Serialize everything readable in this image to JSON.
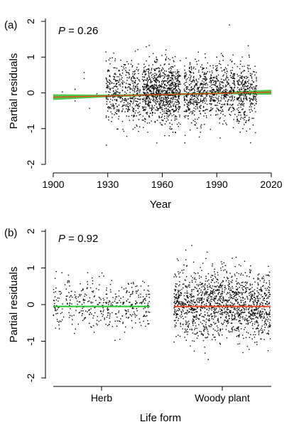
{
  "chart_data": [
    {
      "type": "scatter",
      "panel_label": "(a)",
      "p_value": {
        "symbol": "P",
        "text": " = 0.26"
      },
      "xlabel": "Year",
      "ylabel": "Partial residuals",
      "xlim": [
        1900,
        2020
      ],
      "ylim": [
        -2,
        2
      ],
      "x_ticks": [
        1900,
        1930,
        1960,
        1990,
        2020
      ],
      "x_tick_labels": [
        "1900",
        "1930",
        "1960",
        "1990",
        "2020"
      ],
      "y_ticks": [
        -2,
        -1,
        0,
        1,
        2
      ],
      "y_tick_labels": [
        "-2",
        "-1",
        "0",
        "1",
        "2"
      ],
      "fit_line": {
        "x": [
          1900,
          2020
        ],
        "y": [
          -0.12,
          0.02
        ],
        "color": "#e8461e"
      },
      "confidence_band": {
        "x": [
          1900,
          1930,
          1960,
          1990,
          2020
        ],
        "lower": [
          -0.2,
          -0.12,
          -0.08,
          -0.04,
          -0.05
        ],
        "upper": [
          -0.04,
          -0.05,
          -0.02,
          0.02,
          0.09
        ],
        "color": "#29c12a"
      },
      "points": [
        [
          1930,
          0.6
        ],
        [
          1932,
          -0.8
        ],
        [
          1934,
          0.9
        ],
        [
          1936,
          0.3
        ],
        [
          1938,
          -0.5
        ],
        [
          1940,
          0.7
        ],
        [
          1942,
          -0.3
        ],
        [
          1945,
          0.4
        ],
        [
          1948,
          -0.6
        ],
        [
          1950,
          0.8
        ],
        [
          1952,
          -1.1
        ],
        [
          1955,
          1.1
        ],
        [
          1957,
          -1.4
        ],
        [
          1958,
          0.2
        ],
        [
          1960,
          -0.9
        ],
        [
          1962,
          1.2
        ],
        [
          1964,
          -0.4
        ],
        [
          1966,
          0.5
        ],
        [
          1968,
          -0.2
        ],
        [
          1975,
          0.7
        ],
        [
          1978,
          -0.8
        ],
        [
          1980,
          0.9
        ],
        [
          1983,
          -0.5
        ],
        [
          1986,
          0.3
        ],
        [
          1990,
          1.0
        ],
        [
          1992,
          -0.7
        ],
        [
          1995,
          0.4
        ],
        [
          1997,
          1.9
        ],
        [
          2000,
          -0.6
        ],
        [
          2003,
          0.8
        ],
        [
          2005,
          -0.3
        ],
        [
          2008,
          1.0
        ],
        [
          2010,
          -0.9
        ],
        [
          2012,
          0.2
        ],
        [
          1912,
          0.1
        ],
        [
          1917,
          0.4
        ]
      ],
      "point_color": "#000000"
    },
    {
      "type": "scatter",
      "panel_label": "(b)",
      "p_value": {
        "symbol": "P",
        "text": " = 0.92"
      },
      "xlabel": "Life form",
      "ylabel": "Partial residuals",
      "categories": [
        "Herb",
        "Woody plant"
      ],
      "ylim": [
        -2,
        2
      ],
      "y_ticks": [
        -2,
        -1,
        0,
        1,
        2
      ],
      "y_tick_labels": [
        "-2",
        "-1",
        "0",
        "1",
        "2"
      ],
      "category_fits": [
        {
          "category": "Herb",
          "mean": -0.05,
          "line_color": "#29c12a"
        },
        {
          "category": "Woody plant",
          "mean": -0.05,
          "line_color": "#e8461e"
        }
      ],
      "category_ranges": [
        {
          "category": "Herb",
          "min": -1.4,
          "max": 0.9
        },
        {
          "category": "Woody plant",
          "min": -1.5,
          "max": 1.8
        }
      ],
      "point_color": "#000000"
    }
  ]
}
